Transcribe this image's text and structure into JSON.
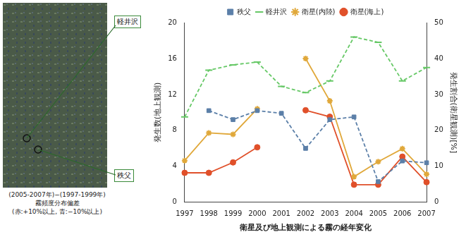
{
  "chart_data": {
    "type": "line",
    "title": "衛星及び地上観測による霧の経年変化",
    "categories": [
      "1997",
      "1998",
      "1999",
      "2000",
      "2001",
      "2002",
      "2003",
      "2004",
      "2005",
      "2006",
      "2007"
    ],
    "y_label": "発生数(地上観測)",
    "y2_label": "発生割合(衛星観測)[%]",
    "ylim": [
      0,
      20
    ],
    "yticks": [
      0,
      4,
      8,
      12,
      16,
      20
    ],
    "y2lim": [
      0,
      50
    ],
    "y2ticks": [
      0,
      10,
      20,
      30,
      40,
      50
    ],
    "grid": false,
    "legend": "top",
    "series": [
      {
        "name": "秩父",
        "color": "#5b7fa8",
        "marker": "square",
        "line_style": "dashed",
        "values": [
          null,
          10.2,
          9.2,
          10.2,
          9.9,
          6.0,
          9.2,
          9.5,
          2.3,
          4.6,
          4.4
        ]
      },
      {
        "name": "軽井沢",
        "color": "#66c866",
        "marker": "line",
        "line_style": "dashed",
        "values": [
          9.5,
          14.7,
          15.3,
          15.6,
          12.9,
          12.2,
          13.5,
          18.4,
          17.8,
          13.5,
          15.0
        ]
      },
      {
        "name": "衛星(内陸)",
        "color": "#e0a83a",
        "marker": "star",
        "line_style": "solid",
        "axis": "y2",
        "values": [
          11.6,
          19.3,
          18.9,
          26.0,
          null,
          40.0,
          28.2,
          7.1,
          11.3,
          14.9,
          7.8
        ]
      },
      {
        "name": "衛星(海上)",
        "color": "#e0502a",
        "marker": "circle",
        "line_style": "solid",
        "axis": "y2",
        "values": [
          8.2,
          8.2,
          11.1,
          15.3,
          null,
          25.6,
          23.8,
          4.9,
          4.9,
          12.7,
          5.6
        ]
      }
    ]
  },
  "map": {
    "caption": [
      "(2005-2007年)−(1997-1999年)",
      "霧頻度分布偏差",
      "(赤:+10%以上, 青:−10%以上)"
    ],
    "labels": [
      "軽井沢",
      "秩父"
    ]
  }
}
